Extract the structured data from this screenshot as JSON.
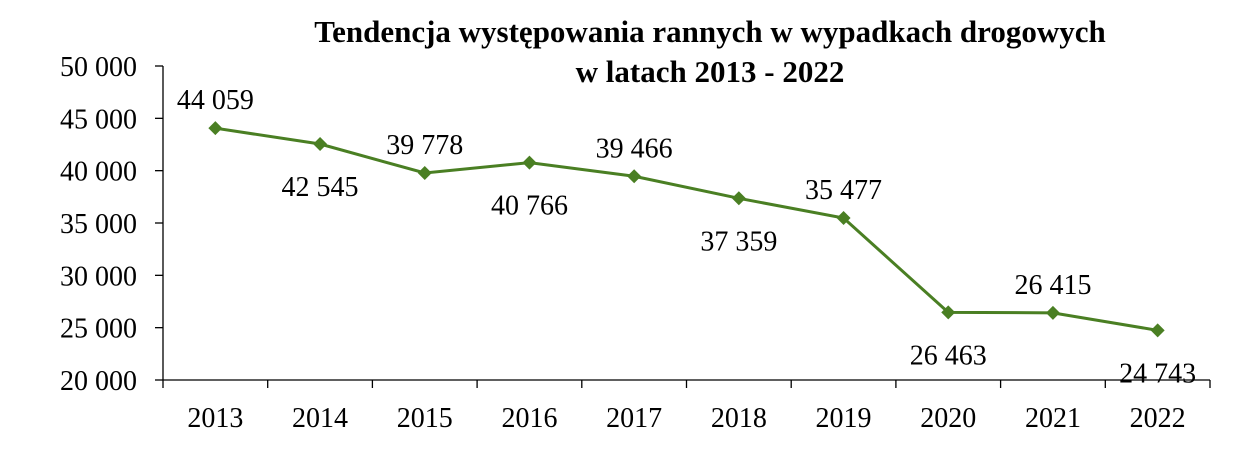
{
  "chart_data": {
    "type": "line",
    "title": "Tendencja występowania rannych w wypadkach drogowych",
    "subtitle": "w latach 2013 - 2022",
    "categories": [
      "2013",
      "2014",
      "2015",
      "2016",
      "2017",
      "2018",
      "2019",
      "2020",
      "2021",
      "2022"
    ],
    "series": [
      {
        "values": [
          44059,
          42545,
          39778,
          40766,
          39466,
          37359,
          35477,
          26463,
          26415,
          24743
        ],
        "color": "#4a7f23"
      }
    ],
    "data_labels": [
      "44 059",
      "42 545",
      "39 778",
      "40 766",
      "39 466",
      "37 359",
      "35 477",
      "26 463",
      "26 415",
      "24 743"
    ],
    "label_positions": [
      "above",
      "below",
      "above",
      "below",
      "above",
      "below",
      "above",
      "below",
      "above",
      "below"
    ],
    "yticks": [
      "20 000",
      "25 000",
      "30 000",
      "35 000",
      "40 000",
      "45 000",
      "50 000"
    ],
    "ylim": [
      20000,
      50000
    ],
    "marker": "diamond",
    "grid": false,
    "legend": "none"
  }
}
